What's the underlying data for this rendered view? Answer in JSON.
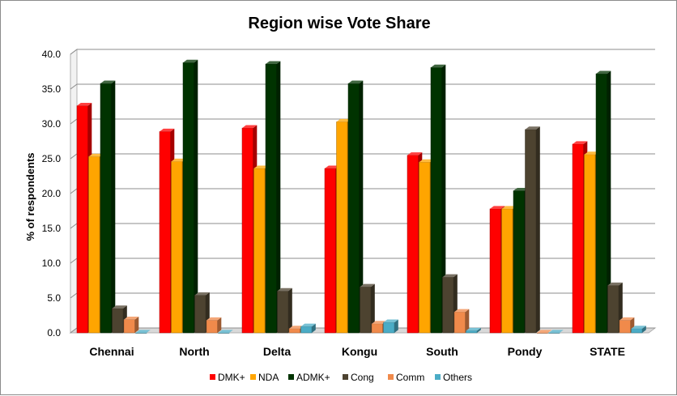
{
  "chart_data": {
    "type": "bar",
    "title": "Region wise Vote Share",
    "ylabel": "% of respondents",
    "xlabel": "",
    "ylim": [
      0,
      40
    ],
    "yticks": [
      "0.0",
      "5.0",
      "10.0",
      "15.0",
      "20.0",
      "25.0",
      "30.0",
      "35.0",
      "40.0"
    ],
    "grid": true,
    "legend_position": "bottom",
    "categories": [
      "Chennai",
      "North",
      "Delta",
      "Kongu",
      "South",
      "Pondy",
      "STATE"
    ],
    "series": [
      {
        "name": "DMK+",
        "color": "#ff0000",
        "values": [
          32.6,
          28.9,
          29.4,
          23.6,
          25.5,
          17.8,
          27.1
        ]
      },
      {
        "name": "NDA",
        "color": "#ffa500",
        "values": [
          25.3,
          24.6,
          23.6,
          30.3,
          24.5,
          17.8,
          25.6
        ]
      },
      {
        "name": "ADMK+",
        "color": "#003300",
        "values": [
          35.8,
          38.8,
          38.6,
          35.8,
          38.1,
          20.4,
          37.2
        ]
      },
      {
        "name": "Cong",
        "color": "#4d4330",
        "values": [
          3.5,
          5.4,
          6.0,
          6.6,
          8.0,
          29.2,
          6.8
        ]
      },
      {
        "name": "Comm",
        "color": "#f08a4b",
        "values": [
          1.9,
          1.8,
          0.6,
          1.3,
          3.0,
          0.0,
          1.8
        ]
      },
      {
        "name": "Others",
        "color": "#4bacc6",
        "values": [
          0.0,
          0.0,
          0.9,
          1.5,
          0.3,
          0.0,
          0.6
        ]
      }
    ]
  }
}
